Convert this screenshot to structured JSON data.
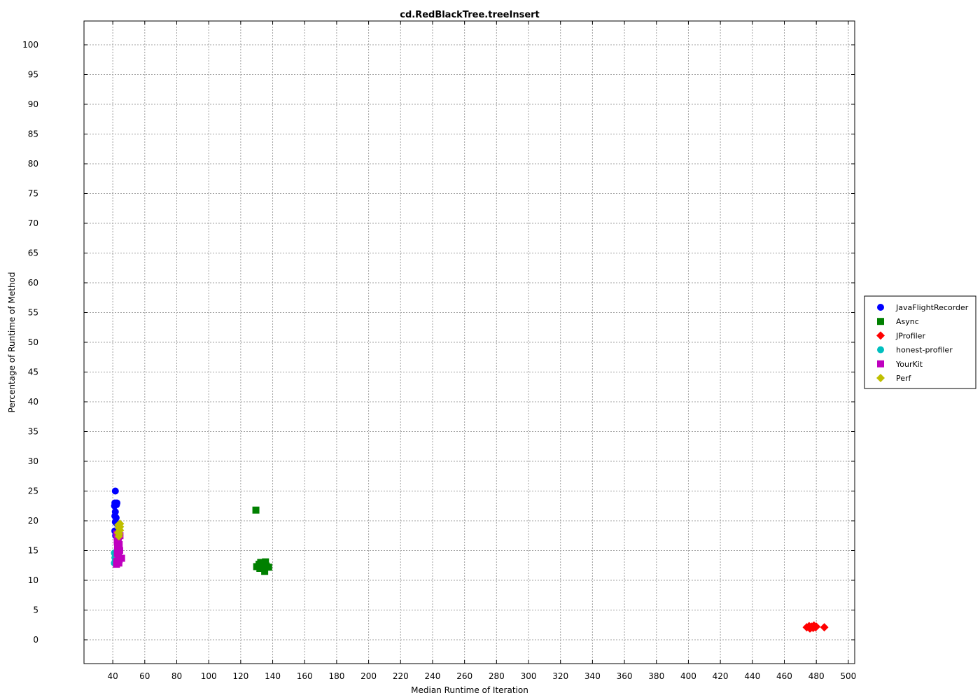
{
  "chart_data": {
    "type": "scatter",
    "title": "cd.RedBlackTree.treeInsert",
    "xlabel": "Median Runtime of Iteration",
    "ylabel": "Percentage of Runtime of Method",
    "xlim": [
      22,
      504
    ],
    "ylim": [
      -4,
      104
    ],
    "xticks": [
      40,
      60,
      80,
      100,
      120,
      140,
      160,
      180,
      200,
      220,
      240,
      260,
      280,
      300,
      320,
      340,
      360,
      380,
      400,
      420,
      440,
      460,
      480,
      500
    ],
    "yticks": [
      0,
      5,
      10,
      15,
      20,
      25,
      30,
      35,
      40,
      45,
      50,
      55,
      60,
      65,
      70,
      75,
      80,
      85,
      90,
      95,
      100
    ],
    "grid": true,
    "legend_position": "right",
    "series": [
      {
        "name": "JavaFlightRecorder",
        "marker": "circle",
        "color": "#0000ff",
        "points": [
          [
            41.6,
            25.0
          ],
          [
            41.3,
            23.0
          ],
          [
            42.6,
            23.0
          ],
          [
            41.1,
            22.5
          ],
          [
            42.3,
            22.7
          ],
          [
            41.6,
            21.5
          ],
          [
            41.3,
            20.8
          ],
          [
            42.1,
            20.5
          ],
          [
            41.6,
            19.8
          ],
          [
            42.6,
            19.5
          ],
          [
            41.3,
            18.3
          ],
          [
            42.1,
            18.0
          ],
          [
            41.8,
            17.5
          ]
        ]
      },
      {
        "name": "Async",
        "marker": "square",
        "color": "#008000",
        "points": [
          [
            129.5,
            21.8
          ],
          [
            130.0,
            12.3
          ],
          [
            131.5,
            12.7
          ],
          [
            132.0,
            12.0
          ],
          [
            133.5,
            12.5
          ],
          [
            134.5,
            12.0
          ],
          [
            135.5,
            13.1
          ],
          [
            136.0,
            12.4
          ],
          [
            135.0,
            11.5
          ],
          [
            137.5,
            12.2
          ],
          [
            132.5,
            13.0
          ]
        ]
      },
      {
        "name": "JProfiler",
        "marker": "diamond",
        "color": "#ff0000",
        "points": [
          [
            474.0,
            2.1
          ],
          [
            475.5,
            2.3
          ],
          [
            476.0,
            1.9
          ],
          [
            477.0,
            2.2
          ],
          [
            478.0,
            2.0
          ],
          [
            478.5,
            2.4
          ],
          [
            479.5,
            2.1
          ],
          [
            480.0,
            2.2
          ],
          [
            476.5,
            2.0
          ],
          [
            485.0,
            2.1
          ]
        ]
      },
      {
        "name": "honest-profiler",
        "marker": "circle",
        "color": "#00bfbf",
        "points": [
          [
            41.0,
            14.6
          ],
          [
            41.3,
            13.8
          ],
          [
            41.5,
            13.2
          ],
          [
            41.0,
            12.9
          ],
          [
            42.0,
            13.5
          ],
          [
            41.6,
            14.2
          ]
        ]
      },
      {
        "name": "YourKit",
        "marker": "square",
        "color": "#bf00bf",
        "points": [
          [
            42.5,
            17.8
          ],
          [
            43.5,
            17.2
          ],
          [
            42.8,
            16.5
          ],
          [
            44.0,
            16.0
          ],
          [
            43.0,
            15.5
          ],
          [
            44.3,
            15.0
          ],
          [
            42.8,
            14.5
          ],
          [
            43.5,
            14.0
          ],
          [
            44.0,
            13.5
          ],
          [
            42.5,
            13.2
          ],
          [
            43.8,
            12.9
          ],
          [
            42.3,
            12.7
          ],
          [
            45.5,
            13.7
          ],
          [
            43.0,
            16.8
          ],
          [
            44.5,
            17.5
          ]
        ]
      },
      {
        "name": "Perf",
        "marker": "diamond",
        "color": "#bfbf00",
        "points": [
          [
            43.5,
            19.3
          ],
          [
            44.5,
            19.5
          ],
          [
            43.8,
            18.8
          ],
          [
            44.5,
            18.4
          ],
          [
            43.3,
            18.0
          ],
          [
            44.0,
            17.8
          ],
          [
            43.8,
            17.4
          ],
          [
            44.5,
            19.0
          ]
        ]
      }
    ]
  }
}
